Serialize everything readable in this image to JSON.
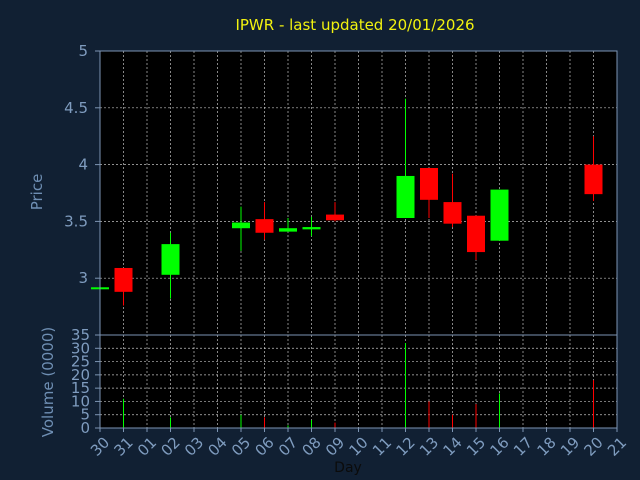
{
  "chart_data": [
    {
      "type": "candlestick",
      "title": "IPWR - last updated 20/01/2026",
      "ylabel": "Price",
      "ylim": [
        2.5,
        5
      ],
      "yticks": [
        3,
        3.5,
        4,
        4.5,
        5
      ],
      "ytick_labels": [
        "3",
        "3.5",
        "4",
        "4.5",
        "5"
      ],
      "grid": true,
      "up_color": "#00ff00",
      "down_color": "#ff0000",
      "candles": [
        {
          "x": "30",
          "open": 2.92,
          "high": 2.92,
          "low": 2.92,
          "close": 2.92
        },
        {
          "x": "31",
          "open": 3.09,
          "high": 3.09,
          "low": 2.76,
          "close": 2.88
        },
        {
          "x": "02",
          "open": 3.03,
          "high": 3.4,
          "low": 2.82,
          "close": 3.3
        },
        {
          "x": "05",
          "open": 3.44,
          "high": 3.63,
          "low": 3.24,
          "close": 3.49
        },
        {
          "x": "06",
          "open": 3.52,
          "high": 3.67,
          "low": 3.34,
          "close": 3.4
        },
        {
          "x": "07",
          "open": 3.41,
          "high": 3.53,
          "low": 3.41,
          "close": 3.44
        },
        {
          "x": "08",
          "open": 3.43,
          "high": 3.54,
          "low": 3.37,
          "close": 3.45
        },
        {
          "x": "09",
          "open": 3.56,
          "high": 3.67,
          "low": 3.5,
          "close": 3.51
        },
        {
          "x": "12",
          "open": 3.53,
          "high": 4.58,
          "low": 3.53,
          "close": 3.9
        },
        {
          "x": "13",
          "open": 3.97,
          "high": 3.97,
          "low": 3.53,
          "close": 3.69
        },
        {
          "x": "14",
          "open": 3.67,
          "high": 3.92,
          "low": 3.45,
          "close": 3.48
        },
        {
          "x": "15",
          "open": 3.55,
          "high": 3.55,
          "low": 3.16,
          "close": 3.23
        },
        {
          "x": "16",
          "open": 3.33,
          "high": 3.78,
          "low": 3.33,
          "close": 3.78
        },
        {
          "x": "20",
          "open": 4.0,
          "high": 4.25,
          "low": 3.68,
          "close": 3.74
        }
      ]
    },
    {
      "type": "bar",
      "ylabel": "Volume (0000)",
      "xlabel": "Day",
      "ylim": [
        0,
        35
      ],
      "yticks": [
        0,
        5,
        10,
        15,
        20,
        25,
        30,
        35
      ],
      "ytick_labels": [
        "0",
        "5",
        "10",
        "15",
        "20",
        "25",
        "30",
        "35"
      ],
      "categories": [
        "30",
        "31",
        "01",
        "02",
        "03",
        "04",
        "05",
        "06",
        "07",
        "08",
        "09",
        "10",
        "11",
        "12",
        "13",
        "14",
        "15",
        "16",
        "17",
        "18",
        "19",
        "20",
        "21"
      ],
      "bars": [
        {
          "x": "31",
          "value": 11,
          "color": "#00ff00"
        },
        {
          "x": "02",
          "value": 4,
          "color": "#00ff00"
        },
        {
          "x": "05",
          "value": 5,
          "color": "#00ff00"
        },
        {
          "x": "06",
          "value": 4,
          "color": "#ff0000"
        },
        {
          "x": "07",
          "value": 1,
          "color": "#00ff00"
        },
        {
          "x": "08",
          "value": 3,
          "color": "#00ff00"
        },
        {
          "x": "09",
          "value": 2,
          "color": "#ff0000"
        },
        {
          "x": "12",
          "value": 32,
          "color": "#00ff00"
        },
        {
          "x": "13",
          "value": 10,
          "color": "#ff0000"
        },
        {
          "x": "14",
          "value": 5,
          "color": "#ff0000"
        },
        {
          "x": "15",
          "value": 9,
          "color": "#ff0000"
        },
        {
          "x": "16",
          "value": 13,
          "color": "#00ff00"
        },
        {
          "x": "20",
          "value": 18,
          "color": "#ff0000"
        }
      ]
    }
  ]
}
